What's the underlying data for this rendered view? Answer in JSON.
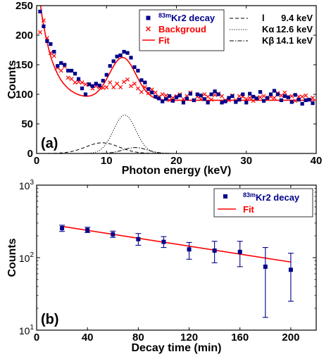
{
  "chart_data": [
    {
      "panel_label": "(a)",
      "type": "scatter",
      "xlabel": "Photon energy (keV)",
      "ylabel": "Counts",
      "xlim": [
        0,
        40
      ],
      "ylim": [
        0,
        250
      ],
      "xticks": [
        0,
        10,
        20,
        30,
        40
      ],
      "yticks": [
        0,
        50,
        100,
        150,
        200,
        250
      ],
      "grid": false,
      "legend_position": "top-right",
      "legend": [
        {
          "text_sup": "83m",
          "text": "Kr2 decay",
          "color": "#00008B",
          "marker": "square"
        },
        {
          "text": "Backgroud",
          "color": "#FF0000",
          "marker": "x"
        },
        {
          "text": "Fit",
          "color": "#FF0000",
          "line": "solid"
        }
      ],
      "legend2": [
        {
          "name": "l",
          "value": "9.4 keV",
          "line": "dashed"
        },
        {
          "name": "Kα",
          "value": "12.6 keV",
          "line": "dotted"
        },
        {
          "name": "Kβ",
          "value": "14.1 keV",
          "line": "dashdot"
        }
      ],
      "series": [
        {
          "name": "83mKr2 decay",
          "color": "#00008B",
          "marker": "square",
          "x": [
            0.5,
            1,
            1.5,
            2,
            2.5,
            3,
            3.5,
            4,
            4.5,
            5,
            5.5,
            6,
            6.5,
            7,
            7.5,
            8,
            8.5,
            9,
            9.5,
            10,
            10.5,
            11,
            11.5,
            12,
            12.5,
            13,
            13.5,
            14,
            14.5,
            15,
            15.5,
            16,
            16.5,
            17,
            17.5,
            18,
            18.5,
            19,
            19.5,
            20,
            20.5,
            21,
            21.5,
            22,
            22.5,
            23,
            23.5,
            24,
            24.5,
            25,
            25.5,
            26,
            26.5,
            27,
            27.5,
            28,
            28.5,
            29,
            29.5,
            30,
            30.5,
            31,
            31.5,
            32,
            32.5,
            33,
            33.5,
            34,
            34.5,
            35,
            35.5,
            36,
            36.5,
            37,
            37.5,
            38,
            38.5,
            39,
            39.5
          ],
          "y": [
            240,
            215,
            190,
            185,
            172,
            148,
            153,
            150,
            140,
            140,
            135,
            126,
            110,
            100,
            117,
            114,
            118,
            115,
            123,
            133,
            148,
            156,
            164,
            166,
            172,
            170,
            162,
            146,
            140,
            124,
            120,
            109,
            103,
            96,
            93,
            88,
            92,
            97,
            89,
            95,
            98,
            86,
            93,
            101,
            90,
            100,
            98,
            92,
            86,
            100,
            105,
            100,
            86,
            88,
            94,
            97,
            87,
            91,
            100,
            86,
            101,
            96,
            93,
            104,
            89,
            94,
            100,
            106,
            100,
            90,
            97,
            95,
            87,
            99,
            91,
            84,
            90,
            91,
            85
          ]
        },
        {
          "name": "Backgroud",
          "color": "#FF0000",
          "marker": "x",
          "x": [
            0.5,
            1,
            1.5,
            2,
            2.5,
            3,
            3.5,
            4,
            4.5,
            5,
            5.5,
            6,
            6.5,
            7,
            7.5,
            8,
            8.5,
            9,
            9.5,
            10,
            10.5,
            11,
            11.5,
            12,
            12.5,
            13,
            13.5,
            14,
            14.5,
            15,
            15.5,
            16,
            16.5,
            17,
            17.5,
            18,
            18.5,
            19,
            19.5,
            20,
            20.5,
            21,
            21.5,
            22,
            22.5,
            23,
            23.5,
            24,
            24.5,
            25,
            25.5,
            26,
            26.5,
            27,
            27.5,
            28,
            28.5,
            29,
            29.5,
            30,
            30.5,
            31,
            31.5,
            32,
            32.5,
            33,
            33.5,
            34,
            34.5,
            35,
            35.5,
            36,
            36.5,
            37,
            37.5,
            38,
            38.5,
            39,
            39.5
          ],
          "y": [
            205,
            225,
            195,
            170,
            165,
            145,
            140,
            147,
            128,
            126,
            120,
            121,
            120,
            117,
            116,
            110,
            114,
            112,
            111,
            112,
            120,
            112,
            118,
            112,
            121,
            125,
            114,
            118,
            110,
            104,
            112,
            102,
            108,
            103,
            96,
            100,
            98,
            90,
            94,
            97,
            100,
            92,
            97,
            103,
            90,
            96,
            92,
            100,
            96,
            91,
            99,
            101,
            97,
            90,
            90,
            98,
            90,
            97,
            96,
            92,
            94,
            89,
            94,
            95,
            97,
            93,
            96,
            94,
            102,
            98,
            103,
            95,
            97,
            89,
            96,
            96,
            98,
            91,
            94
          ]
        },
        {
          "name": "Fit",
          "color": "#FF0000",
          "line": "solid",
          "curve": "background + gaussian peak",
          "baseline": 90,
          "peak_center_kev": 12.3,
          "peak_max": 172
        }
      ],
      "components": [
        {
          "name": "l",
          "center_kev": 9.4,
          "peak": 18,
          "line": "dashed"
        },
        {
          "name": "Kα",
          "center_kev": 12.6,
          "peak": 65,
          "line": "dotted"
        },
        {
          "name": "Kβ",
          "center_kev": 14.1,
          "peak": 10,
          "line": "dashdot"
        }
      ]
    },
    {
      "panel_label": "(b)",
      "type": "scatter",
      "xlabel": "Decay time (min)",
      "ylabel": "Counts",
      "xlim": [
        0,
        220
      ],
      "ylim": [
        10,
        1000
      ],
      "yscale": "log",
      "xticks": [
        0,
        40,
        80,
        120,
        160,
        200
      ],
      "yticks": [
        {
          "value": 10,
          "base": "10",
          "exp": "1"
        },
        {
          "value": 100,
          "base": "10",
          "exp": "2"
        },
        {
          "value": 1000,
          "base": "10",
          "exp": "3"
        }
      ],
      "grid": false,
      "legend_position": "top-right",
      "legend": [
        {
          "text_sup": "83m",
          "text": "Kr2 decay",
          "color": "#00008B",
          "marker": "square"
        },
        {
          "text": "Fit",
          "color": "#FF0000",
          "line": "solid"
        }
      ],
      "series": [
        {
          "name": "83mKr2 decay",
          "color": "#00008B",
          "marker": "square",
          "x": [
            20,
            40,
            60,
            80,
            100,
            120,
            140,
            160,
            180,
            200
          ],
          "y": [
            255,
            240,
            210,
            180,
            165,
            130,
            125,
            120,
            75,
            68
          ],
          "err_low": [
            230,
            222,
            190,
            148,
            138,
            95,
            85,
            75,
            15,
            25
          ],
          "err_high": [
            280,
            262,
            232,
            215,
            195,
            162,
            168,
            168,
            138,
            115
          ]
        },
        {
          "name": "Fit",
          "color": "#FF0000",
          "line": "solid",
          "x": [
            20,
            200
          ],
          "y": [
            270,
            87
          ]
        }
      ]
    }
  ]
}
